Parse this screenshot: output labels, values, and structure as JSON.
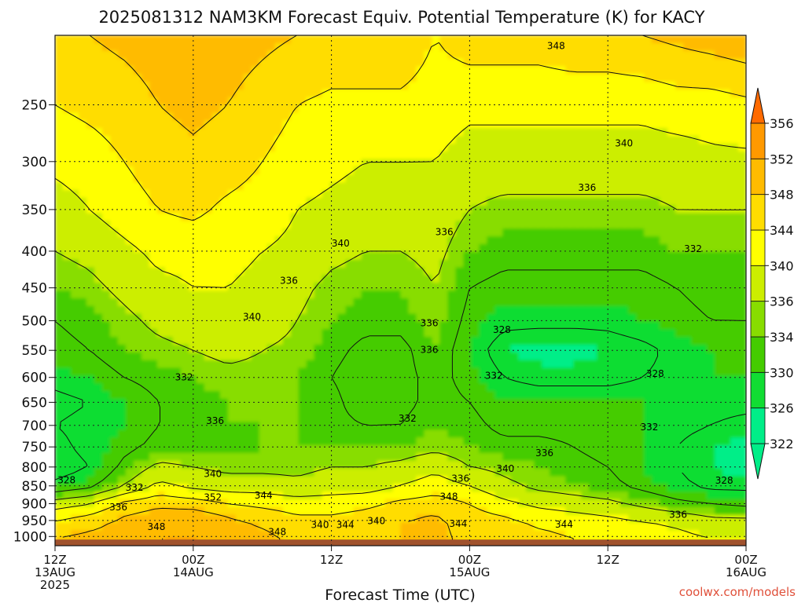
{
  "chart_data": {
    "type": "heatmap",
    "title": "2025081312 NAM3KM Forecast Equiv. Potential Temperature (K) for KACY",
    "xlabel": "Forecast Time (UTC)",
    "ylabel": "",
    "credit": "coolwx.com/models",
    "y_scale": "log-pressure",
    "y_unit": "hPa",
    "ylim": [
      1030,
      200
    ],
    "yticks": [
      250,
      300,
      350,
      400,
      450,
      500,
      550,
      600,
      650,
      700,
      750,
      800,
      850,
      900,
      950,
      1000
    ],
    "xlim": [
      0,
      60
    ],
    "x_unit": "forecast hours from 2025-08-13 12Z",
    "x_ticks": [
      {
        "x": 0,
        "line1": "12Z",
        "line2": "13AUG",
        "line3": "2025"
      },
      {
        "x": 12,
        "line1": "00Z",
        "line2": "14AUG",
        "line3": ""
      },
      {
        "x": 24,
        "line1": "12Z",
        "line2": "",
        "line3": ""
      },
      {
        "x": 36,
        "line1": "00Z",
        "line2": "15AUG",
        "line3": ""
      },
      {
        "x": 48,
        "line1": "12Z",
        "line2": "",
        "line3": ""
      },
      {
        "x": 60,
        "line1": "00Z",
        "line2": "16AUG",
        "line3": ""
      }
    ],
    "grid": true,
    "colorbar": {
      "placement": "right",
      "levels": [
        322,
        326,
        330,
        334,
        336,
        340,
        344,
        348,
        352,
        356
      ],
      "level_labels": [
        "322",
        "326",
        "330",
        "334",
        "336",
        "340",
        "344",
        "348",
        "352",
        "356"
      ],
      "colors": [
        "#00ee88",
        "#11dd33",
        "#44cc00",
        "#88dd00",
        "#ccee00",
        "#ffff00",
        "#ffdd00",
        "#ffbb00",
        "#ff9900",
        "#ff6a00"
      ],
      "extend": "both"
    },
    "ground_color": "#a0522d",
    "ground_pressure": 1010,
    "columns_x": [
      0,
      3,
      6,
      9,
      12,
      15,
      18,
      21,
      24,
      27,
      30,
      33,
      36,
      39,
      42,
      45,
      48,
      51,
      54,
      57,
      60
    ],
    "levels_p": [
      1000,
      950,
      900,
      850,
      800,
      750,
      700,
      650,
      600,
      550,
      500,
      450,
      400,
      350,
      300,
      250,
      200
    ],
    "theta_e": [
      [
        348,
        349,
        350,
        352,
        352,
        350,
        349,
        347,
        346,
        347,
        348,
        349,
        347,
        346,
        345,
        344,
        343,
        342,
        341,
        340,
        340
      ],
      [
        344,
        346,
        349,
        351,
        352,
        349,
        347,
        345,
        345,
        346,
        348,
        349,
        346,
        345,
        343,
        342,
        341,
        340,
        339,
        337,
        337
      ],
      [
        338,
        340,
        345,
        347,
        346,
        344,
        343,
        342,
        342,
        343,
        345,
        346,
        344,
        341,
        339,
        338,
        337,
        335,
        333,
        332,
        331
      ],
      [
        329,
        331,
        336,
        341,
        339,
        338,
        338,
        337,
        338,
        338,
        340,
        342,
        340,
        337,
        335,
        334,
        333,
        331,
        329,
        327,
        327
      ],
      [
        326,
        328,
        333,
        337,
        336,
        335,
        335,
        335,
        336,
        336,
        337,
        339,
        336,
        335,
        334,
        333,
        332,
        330,
        328,
        326,
        325
      ],
      [
        327,
        329,
        331,
        333,
        333,
        333,
        334,
        334,
        334,
        334,
        334,
        335,
        334,
        333,
        333,
        332,
        331,
        330,
        328,
        326,
        325
      ],
      [
        328,
        329,
        330,
        332,
        333,
        334,
        334,
        334,
        333,
        332,
        332,
        334,
        333,
        331,
        331,
        331,
        331,
        330,
        329,
        328,
        327
      ],
      [
        327,
        328,
        330,
        332,
        333,
        334,
        335,
        334,
        333,
        330,
        331,
        333,
        332,
        330,
        330,
        330,
        330,
        330,
        330,
        329,
        329
      ],
      [
        329,
        330,
        332,
        333,
        334,
        335,
        335,
        334,
        332,
        330,
        331,
        333,
        331,
        328,
        327,
        327,
        327,
        328,
        329,
        330,
        330
      ],
      [
        331,
        332,
        334,
        335,
        336,
        337,
        336,
        335,
        333,
        331,
        331,
        334,
        330,
        326,
        325,
        325,
        326,
        327,
        329,
        330,
        331
      ],
      [
        332,
        333,
        335,
        337,
        338,
        339,
        338,
        336,
        334,
        333,
        333,
        335,
        331,
        329,
        329,
        329,
        329,
        330,
        331,
        332,
        332
      ],
      [
        334,
        335,
        337,
        339,
        340,
        340,
        339,
        337,
        335,
        334,
        334,
        336,
        332,
        331,
        331,
        331,
        331,
        331,
        332,
        333,
        333
      ],
      [
        336,
        337,
        339,
        341,
        341,
        341,
        340,
        339,
        337,
        336,
        336,
        337,
        334,
        333,
        333,
        333,
        333,
        333,
        334,
        334,
        334
      ],
      [
        338,
        340,
        342,
        344,
        345,
        343,
        342,
        340,
        339,
        338,
        338,
        338,
        336,
        335,
        335,
        335,
        335,
        335,
        336,
        336,
        336
      ],
      [
        341,
        342,
        344,
        346,
        347,
        346,
        344,
        342,
        341,
        340,
        340,
        340,
        338,
        338,
        338,
        338,
        338,
        338,
        338,
        339,
        339
      ],
      [
        344,
        345,
        346,
        348,
        349,
        348,
        346,
        344,
        343,
        343,
        343,
        342,
        341,
        341,
        341,
        341,
        341,
        341,
        342,
        342,
        343
      ],
      [
        347,
        348,
        349,
        350,
        351,
        350,
        349,
        348,
        347,
        347,
        347,
        344,
        346,
        346,
        346,
        347,
        347,
        348,
        349,
        350,
        351
      ]
    ],
    "contour_labels": [
      {
        "text": "348",
        "x": 43.5,
        "p": 207
      },
      {
        "text": "340",
        "x": 49.4,
        "p": 283
      },
      {
        "text": "336",
        "x": 46.2,
        "p": 326
      },
      {
        "text": "340",
        "x": 24.8,
        "p": 390
      },
      {
        "text": "336",
        "x": 33.8,
        "p": 376
      },
      {
        "text": "332",
        "x": 55.4,
        "p": 397
      },
      {
        "text": "336",
        "x": 20.3,
        "p": 440
      },
      {
        "text": "340",
        "x": 17.1,
        "p": 494
      },
      {
        "text": "336",
        "x": 32.5,
        "p": 504
      },
      {
        "text": "328",
        "x": 38.8,
        "p": 515
      },
      {
        "text": "336",
        "x": 32.5,
        "p": 549
      },
      {
        "text": "332",
        "x": 11.2,
        "p": 600
      },
      {
        "text": "332",
        "x": 38.1,
        "p": 597
      },
      {
        "text": "328",
        "x": 52.1,
        "p": 593
      },
      {
        "text": "332",
        "x": 30.6,
        "p": 685
      },
      {
        "text": "336",
        "x": 13.9,
        "p": 690
      },
      {
        "text": "332",
        "x": 51.6,
        "p": 704
      },
      {
        "text": "336",
        "x": 42.5,
        "p": 765
      },
      {
        "text": "340",
        "x": 13.7,
        "p": 818
      },
      {
        "text": "340",
        "x": 39.1,
        "p": 804
      },
      {
        "text": "336",
        "x": 35.2,
        "p": 830
      },
      {
        "text": "328",
        "x": 1.0,
        "p": 834
      },
      {
        "text": "332",
        "x": 6.9,
        "p": 855
      },
      {
        "text": "344",
        "x": 18.1,
        "p": 876
      },
      {
        "text": "352",
        "x": 13.7,
        "p": 882
      },
      {
        "text": "348",
        "x": 34.2,
        "p": 880
      },
      {
        "text": "328",
        "x": 58.1,
        "p": 836
      },
      {
        "text": "336",
        "x": 5.5,
        "p": 910
      },
      {
        "text": "336",
        "x": 54.1,
        "p": 932
      },
      {
        "text": "340",
        "x": 23.0,
        "p": 963
      },
      {
        "text": "344",
        "x": 25.2,
        "p": 963
      },
      {
        "text": "340",
        "x": 27.9,
        "p": 951
      },
      {
        "text": "344",
        "x": 35.0,
        "p": 960
      },
      {
        "text": "344",
        "x": 44.2,
        "p": 962
      },
      {
        "text": "348",
        "x": 8.8,
        "p": 970
      },
      {
        "text": "348",
        "x": 19.3,
        "p": 985
      }
    ]
  }
}
